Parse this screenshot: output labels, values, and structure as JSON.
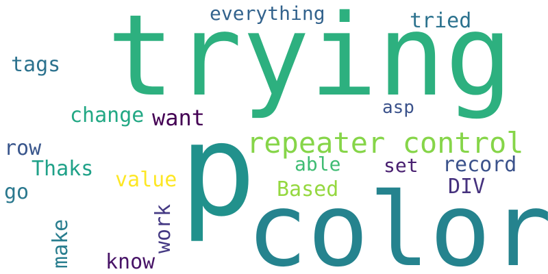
{
  "words": [
    {
      "text": "trying",
      "color": "#2db07f"
    },
    {
      "text": "p",
      "color": "#21918c"
    },
    {
      "text": "color",
      "color": "#25838e"
    },
    {
      "text": "repeater control",
      "color": "#86d549"
    },
    {
      "text": "everything",
      "color": "#33638d"
    },
    {
      "text": "tried",
      "color": "#2c728e"
    },
    {
      "text": "tags",
      "color": "#2c728e"
    },
    {
      "text": "change",
      "color": "#22a884"
    },
    {
      "text": "want",
      "color": "#440154"
    },
    {
      "text": "asp",
      "color": "#3b528b"
    },
    {
      "text": "row",
      "color": "#39568c"
    },
    {
      "text": "Thaks",
      "color": "#1fa188"
    },
    {
      "text": "able",
      "color": "#3fbc73"
    },
    {
      "text": "set",
      "color": "#481f70"
    },
    {
      "text": "record",
      "color": "#3b528b"
    },
    {
      "text": "value",
      "color": "#fde725"
    },
    {
      "text": "DIV",
      "color": "#46327e"
    },
    {
      "text": "Based",
      "color": "#95d840"
    },
    {
      "text": "go",
      "color": "#2a788e"
    },
    {
      "text": "work",
      "color": "#443983"
    },
    {
      "text": "make",
      "color": "#287d8e"
    },
    {
      "text": "know",
      "color": "#481467"
    }
  ]
}
